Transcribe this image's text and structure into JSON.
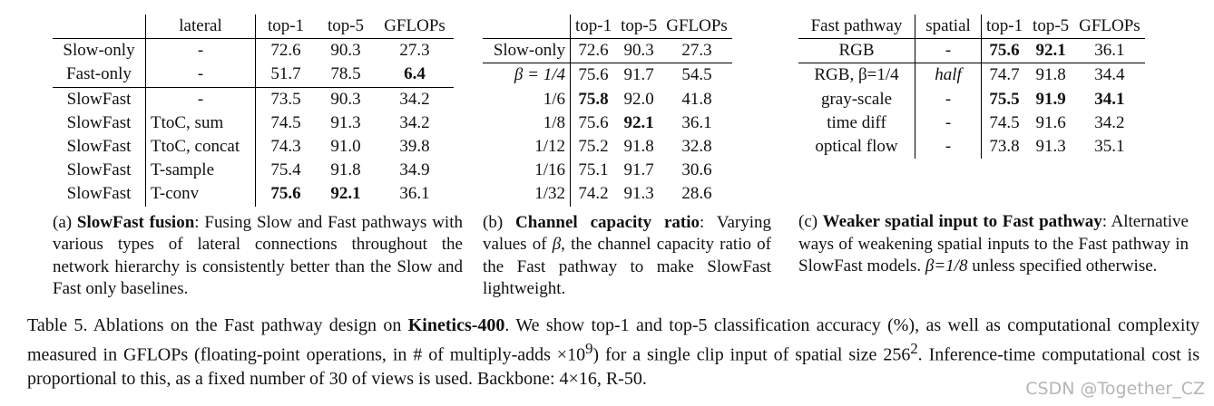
{
  "table_a": {
    "headers": [
      "",
      "lateral",
      "top-1",
      "top-5",
      "GFLOPs"
    ],
    "rows": [
      {
        "model": "Slow-only",
        "lateral": "-",
        "top1": "72.6",
        "top5": "90.3",
        "gflops": "27.3"
      },
      {
        "model": "Fast-only",
        "lateral": "-",
        "top1": "51.7",
        "top5": "78.5",
        "gflops": "6.4"
      },
      {
        "model": "SlowFast",
        "lateral": "-",
        "top1": "73.5",
        "top5": "90.3",
        "gflops": "34.2"
      },
      {
        "model": "SlowFast",
        "lateral": "TtoC, sum",
        "top1": "74.5",
        "top5": "91.3",
        "gflops": "34.2"
      },
      {
        "model": "SlowFast",
        "lateral": "TtoC, concat",
        "top1": "74.3",
        "top5": "91.0",
        "gflops": "39.8"
      },
      {
        "model": "SlowFast",
        "lateral": "T-sample",
        "top1": "75.4",
        "top5": "91.8",
        "gflops": "34.9"
      },
      {
        "model": "SlowFast",
        "lateral": "T-conv",
        "top1": "75.6",
        "top5": "92.1",
        "gflops": "36.1"
      }
    ],
    "caption_label": "(a) ",
    "caption_bold": "SlowFast fusion",
    "caption_text": ": Fusing Slow and Fast pathways with various types of lateral connections throughout the network hierarchy is consistently better than the Slow and Fast only baselines."
  },
  "table_b": {
    "headers": [
      "",
      "top-1",
      "top-5",
      "GFLOPs"
    ],
    "rows": [
      {
        "ratio": "Slow-only",
        "top1": "72.6",
        "top5": "90.3",
        "gflops": "27.3"
      },
      {
        "ratio": "β = 1/4",
        "top1": "75.6",
        "top5": "91.7",
        "gflops": "54.5"
      },
      {
        "ratio": "1/6",
        "top1": "75.8",
        "top5": "92.0",
        "gflops": "41.8"
      },
      {
        "ratio": "1/8",
        "top1": "75.6",
        "top5": "92.1",
        "gflops": "36.1"
      },
      {
        "ratio": "1/12",
        "top1": "75.2",
        "top5": "91.8",
        "gflops": "32.8"
      },
      {
        "ratio": "1/16",
        "top1": "75.1",
        "top5": "91.7",
        "gflops": "30.6"
      },
      {
        "ratio": "1/32",
        "top1": "74.2",
        "top5": "91.3",
        "gflops": "28.6"
      }
    ],
    "caption_label": "(b) ",
    "caption_bold": "Channel capacity ratio",
    "caption_text_1": ": Varying values of ",
    "beta_symbol": "β",
    "caption_text_2": ", the channel capacity ratio of the Fast pathway to make SlowFast lightweight."
  },
  "table_c": {
    "headers": [
      "Fast pathway",
      "spatial",
      "top-1",
      "top-5",
      "GFLOPs"
    ],
    "rows": [
      {
        "input": "RGB",
        "spatial": "-",
        "top1": "75.6",
        "top5": "92.1",
        "gflops": "36.1"
      },
      {
        "input": "RGB, β=1/4",
        "spatial": "half",
        "top1": "74.7",
        "top5": "91.8",
        "gflops": "34.4"
      },
      {
        "input": "gray-scale",
        "spatial": "-",
        "top1": "75.5",
        "top5": "91.9",
        "gflops": "34.1"
      },
      {
        "input": "time diff",
        "spatial": "-",
        "top1": "74.5",
        "top5": "91.6",
        "gflops": "34.2"
      },
      {
        "input": "optical flow",
        "spatial": "-",
        "top1": "73.8",
        "top5": "91.3",
        "gflops": "35.1"
      }
    ],
    "caption_label": "(c) ",
    "caption_bold": "Weaker spatial input to Fast pathway",
    "caption_text_1": ": Alternative ways of weakening spatial inputs to the Fast pathway in SlowFast models. ",
    "caption_beta": "β=1/8",
    "caption_text_2": " unless specified otherwise."
  },
  "main_caption": {
    "prefix": "Table 5. Ablations on the Fast pathway design on ",
    "dataset": "Kinetics-400",
    "text_1": ". We show top-1 and top-5 classification accuracy (%), as well as computational complexity measured in GFLOPs (floating-point operations, in # of multiply-adds ×10",
    "exp_9": "9",
    "text_2": ") for a single clip input of spatial size 256",
    "exp_2": "2",
    "text_3": ". Inference-time computational cost is proportional to this, as a fixed number of 30 of views is used. Backbone: 4×16, R-50."
  },
  "watermark": "CSDN @Together_CZ"
}
